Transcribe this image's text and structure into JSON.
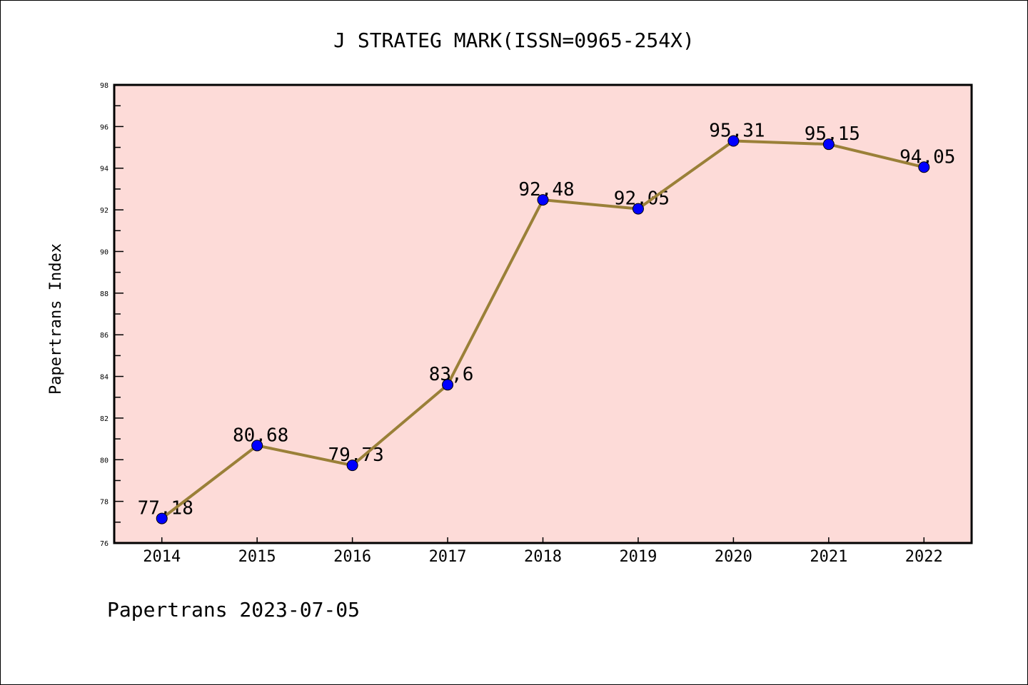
{
  "chart_data": {
    "type": "line",
    "title": "J STRATEG MARK(ISSN=0965-254X)",
    "xlabel": "",
    "ylabel": "Papertrans Index",
    "categories": [
      "2014",
      "2015",
      "2016",
      "2017",
      "2018",
      "2019",
      "2020",
      "2021",
      "2022"
    ],
    "values": [
      77.18,
      80.68,
      79.73,
      83.6,
      92.48,
      92.05,
      95.31,
      95.15,
      94.05
    ],
    "data_labels": [
      "77,18",
      "80,68",
      "79,73",
      "83,6",
      "92,48",
      "92,05",
      "95,31",
      "95,15",
      "94,05"
    ],
    "ylim": [
      76,
      98
    ],
    "yticks": [
      76,
      78,
      80,
      82,
      84,
      86,
      88,
      90,
      92,
      94,
      96,
      98
    ],
    "grid": false,
    "legend": "none",
    "footer": "Papertrans 2023-07-05",
    "colors": {
      "line": "#9a8038",
      "marker": "#0000ff",
      "background": "#fddbd8"
    }
  }
}
